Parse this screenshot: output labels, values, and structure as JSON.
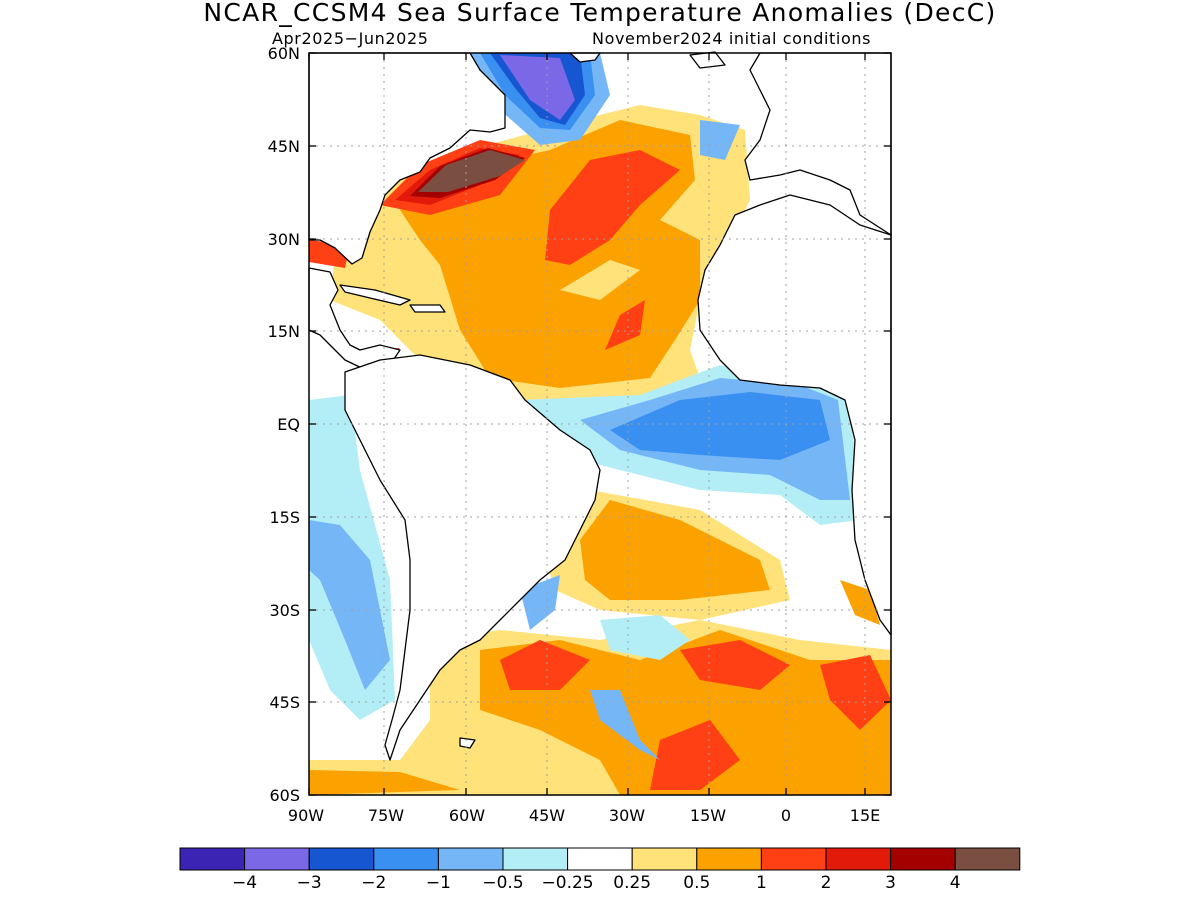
{
  "title": "NCAR_CCSM4 Sea Surface Temperature Anomalies (DecC)",
  "period": "Apr2025−Jun2025",
  "initial_conditions": "November2024 initial conditions",
  "lat_labels": [
    "60N",
    "45N",
    "30N",
    "15N",
    "EQ",
    "15S",
    "30S",
    "45S",
    "60S"
  ],
  "lon_labels": [
    "90W",
    "75W",
    "60W",
    "45W",
    "30W",
    "15W",
    "0",
    "15E"
  ],
  "colorbar": {
    "colors": [
      "#3b23b4",
      "#7a68e6",
      "#1656d1",
      "#3a90f0",
      "#75b6f6",
      "#b3eef7",
      "#ffffff",
      "#ffe27a",
      "#fba200",
      "#ff3f14",
      "#e11a0a",
      "#a40000",
      "#7a4f42"
    ],
    "labels": [
      "−4",
      "−3",
      "−2",
      "−1",
      "−0.5",
      "−0.25",
      "0.25",
      "0.5",
      "1",
      "2",
      "3",
      "4"
    ]
  }
}
